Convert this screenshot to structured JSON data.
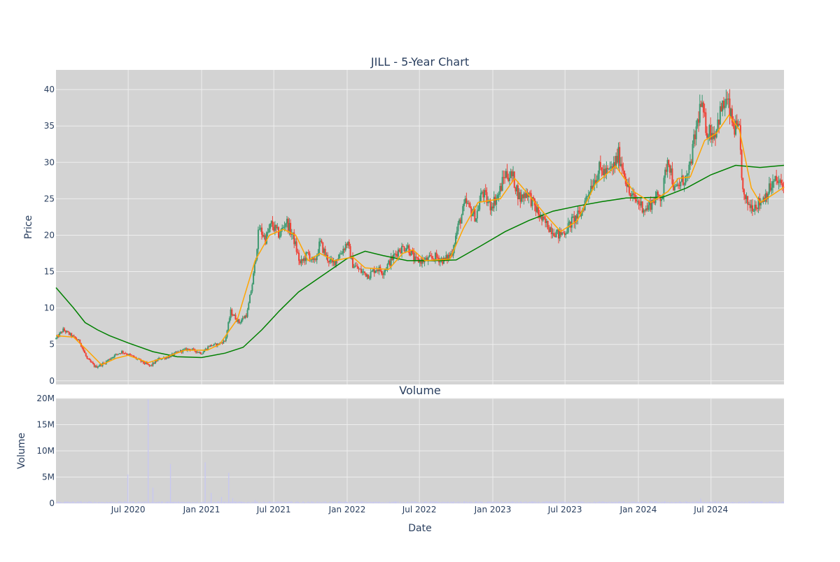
{
  "colors": {
    "background": "#ffffff",
    "plot_bg": "#d3d3d3",
    "grid": "#eeeeee",
    "text": "#2a3f5f",
    "increasing": "#3d9970",
    "decreasing": "#ef4035",
    "ma_short": "#ffa500",
    "ma_long": "#008000",
    "volume": "#c8c8f0"
  },
  "chart_data": [
    {
      "type": "candlestick",
      "title": "JILL - 5-Year Chart",
      "ylabel": "Price",
      "ylim": [
        -0.5,
        42.7
      ],
      "yticks": [
        0,
        5,
        10,
        15,
        20,
        25,
        30,
        35,
        40
      ],
      "xrange": [
        "2020-01-02",
        "2024-12-31"
      ],
      "grid": true,
      "ohlc_control_points": [
        [
          "2020-01-02",
          5.8
        ],
        [
          "2020-01-20",
          7.0
        ],
        [
          "2020-02-10",
          6.2
        ],
        [
          "2020-03-01",
          5.4
        ],
        [
          "2020-03-20",
          3.0
        ],
        [
          "2020-04-10",
          1.9
        ],
        [
          "2020-05-01",
          2.4
        ],
        [
          "2020-05-25",
          3.4
        ],
        [
          "2020-06-15",
          4.0
        ],
        [
          "2020-07-10",
          3.4
        ],
        [
          "2020-08-05",
          2.6
        ],
        [
          "2020-08-25",
          2.0
        ],
        [
          "2020-09-15",
          3.0
        ],
        [
          "2020-10-10",
          3.3
        ],
        [
          "2020-11-05",
          4.0
        ],
        [
          "2020-12-01",
          4.4
        ],
        [
          "2021-01-01",
          3.8
        ],
        [
          "2021-01-20",
          4.8
        ],
        [
          "2021-02-10",
          5.0
        ],
        [
          "2021-03-01",
          5.5
        ],
        [
          "2021-03-15",
          9.5
        ],
        [
          "2021-04-05",
          8.0
        ],
        [
          "2021-04-25",
          9.2
        ],
        [
          "2021-05-10",
          14.0
        ],
        [
          "2021-05-25",
          21.0
        ],
        [
          "2021-06-10",
          19.5
        ],
        [
          "2021-06-25",
          21.5
        ],
        [
          "2021-07-15",
          20.0
        ],
        [
          "2021-08-01",
          22.0
        ],
        [
          "2021-08-20",
          19.5
        ],
        [
          "2021-09-05",
          16.0
        ],
        [
          "2021-09-25",
          17.5
        ],
        [
          "2021-10-10",
          16.0
        ],
        [
          "2021-10-25",
          19.0
        ],
        [
          "2021-11-10",
          17.0
        ],
        [
          "2021-11-25",
          16.0
        ],
        [
          "2021-12-15",
          17.5
        ],
        [
          "2022-01-01",
          19.0
        ],
        [
          "2022-01-15",
          16.0
        ],
        [
          "2022-02-05",
          15.0
        ],
        [
          "2022-02-25",
          14.5
        ],
        [
          "2022-03-15",
          15.5
        ],
        [
          "2022-04-01",
          15.0
        ],
        [
          "2022-04-20",
          16.5
        ],
        [
          "2022-05-10",
          18.0
        ],
        [
          "2022-06-01",
          18.5
        ],
        [
          "2022-06-20",
          16.5
        ],
        [
          "2022-07-15",
          16.5
        ],
        [
          "2022-08-10",
          17.0
        ],
        [
          "2022-09-01",
          16.5
        ],
        [
          "2022-09-20",
          17.5
        ],
        [
          "2022-10-05",
          21.0
        ],
        [
          "2022-10-25",
          24.5
        ],
        [
          "2022-11-05",
          23.5
        ],
        [
          "2022-11-20",
          22.5
        ],
        [
          "2022-12-05",
          26.0
        ],
        [
          "2022-12-25",
          24.0
        ],
        [
          "2023-01-15",
          25.5
        ],
        [
          "2023-02-01",
          28.5
        ],
        [
          "2023-02-20",
          28.0
        ],
        [
          "2023-03-10",
          25.0
        ],
        [
          "2023-03-28",
          26.0
        ],
        [
          "2023-04-15",
          24.0
        ],
        [
          "2023-05-05",
          22.0
        ],
        [
          "2023-05-25",
          21.0
        ],
        [
          "2023-06-15",
          20.0
        ],
        [
          "2023-07-01",
          20.5
        ],
        [
          "2023-07-20",
          22.0
        ],
        [
          "2023-08-10",
          23.0
        ],
        [
          "2023-09-01",
          26.5
        ],
        [
          "2023-09-25",
          29.0
        ],
        [
          "2023-10-15",
          28.5
        ],
        [
          "2023-11-01",
          29.5
        ],
        [
          "2023-11-12",
          31.0
        ],
        [
          "2023-11-25",
          29.0
        ],
        [
          "2023-12-10",
          25.5
        ],
        [
          "2024-01-01",
          24.5
        ],
        [
          "2024-01-20",
          23.5
        ],
        [
          "2024-02-10",
          25.0
        ],
        [
          "2024-03-01",
          25.5
        ],
        [
          "2024-03-15",
          31.0
        ],
        [
          "2024-04-01",
          26.0
        ],
        [
          "2024-04-20",
          27.5
        ],
        [
          "2024-05-05",
          28.0
        ],
        [
          "2024-05-20",
          33.0
        ],
        [
          "2024-06-05",
          38.0
        ],
        [
          "2024-06-20",
          34.5
        ],
        [
          "2024-07-10",
          34.0
        ],
        [
          "2024-07-25",
          37.0
        ],
        [
          "2024-08-10",
          38.5
        ],
        [
          "2024-08-25",
          35.0
        ],
        [
          "2024-09-10",
          34.0
        ],
        [
          "2024-09-20",
          25.0
        ],
        [
          "2024-10-10",
          24.0
        ],
        [
          "2024-11-01",
          24.5
        ],
        [
          "2024-11-20",
          26.0
        ],
        [
          "2024-12-10",
          27.5
        ],
        [
          "2024-12-31",
          26.5
        ]
      ],
      "ma_short_control_points": [
        [
          "2020-01-02",
          6.2
        ],
        [
          "2020-02-15",
          6.0
        ],
        [
          "2020-03-20",
          4.2
        ],
        [
          "2020-04-25",
          2.2
        ],
        [
          "2020-06-01",
          3.1
        ],
        [
          "2020-07-01",
          3.5
        ],
        [
          "2020-08-20",
          2.5
        ],
        [
          "2020-10-01",
          3.2
        ],
        [
          "2020-11-20",
          4.2
        ],
        [
          "2021-01-15",
          4.2
        ],
        [
          "2021-02-15",
          5.0
        ],
        [
          "2021-04-01",
          8.5
        ],
        [
          "2021-05-15",
          16.5
        ],
        [
          "2021-06-20",
          20.0
        ],
        [
          "2021-07-25",
          20.8
        ],
        [
          "2021-08-25",
          20.0
        ],
        [
          "2021-09-25",
          16.5
        ],
        [
          "2021-10-25",
          17.5
        ],
        [
          "2021-12-01",
          16.5
        ],
        [
          "2022-01-15",
          17.0
        ],
        [
          "2022-02-15",
          15.5
        ],
        [
          "2022-04-15",
          15.3
        ],
        [
          "2022-05-20",
          17.5
        ],
        [
          "2022-06-15",
          18.0
        ],
        [
          "2022-07-15",
          16.5
        ],
        [
          "2022-09-15",
          16.7
        ],
        [
          "2022-10-20",
          21.0
        ],
        [
          "2022-11-25",
          24.5
        ],
        [
          "2023-01-20",
          25.0
        ],
        [
          "2023-02-25",
          27.8
        ],
        [
          "2023-03-25",
          26.0
        ],
        [
          "2023-05-10",
          23.0
        ],
        [
          "2023-06-20",
          20.5
        ],
        [
          "2023-08-01",
          22.0
        ],
        [
          "2023-09-15",
          27.0
        ],
        [
          "2023-11-05",
          29.5
        ],
        [
          "2023-12-20",
          26.0
        ],
        [
          "2024-02-01",
          24.5
        ],
        [
          "2024-03-15",
          26.0
        ],
        [
          "2024-04-10",
          27.8
        ],
        [
          "2024-05-10",
          28.0
        ],
        [
          "2024-06-15",
          33.0
        ],
        [
          "2024-07-15",
          34.0
        ],
        [
          "2024-08-15",
          36.5
        ],
        [
          "2024-09-10",
          34.5
        ],
        [
          "2024-10-10",
          26.5
        ],
        [
          "2024-11-01",
          24.5
        ],
        [
          "2024-12-01",
          25.5
        ],
        [
          "2024-12-31",
          26.6
        ]
      ],
      "ma_long_control_points": [
        [
          "2020-01-02",
          12.8
        ],
        [
          "2020-02-15",
          10.0
        ],
        [
          "2020-03-15",
          8.0
        ],
        [
          "2020-04-15",
          7.0
        ],
        [
          "2020-05-15",
          6.2
        ],
        [
          "2020-07-01",
          5.2
        ],
        [
          "2020-09-01",
          4.0
        ],
        [
          "2020-11-01",
          3.3
        ],
        [
          "2021-01-01",
          3.2
        ],
        [
          "2021-03-01",
          3.8
        ],
        [
          "2021-04-15",
          4.6
        ],
        [
          "2021-06-01",
          7.0
        ],
        [
          "2021-07-15",
          9.6
        ],
        [
          "2021-09-01",
          12.2
        ],
        [
          "2021-11-01",
          14.5
        ],
        [
          "2022-01-01",
          16.8
        ],
        [
          "2022-02-15",
          17.8
        ],
        [
          "2022-04-01",
          17.2
        ],
        [
          "2022-06-01",
          16.5
        ],
        [
          "2022-08-01",
          16.5
        ],
        [
          "2022-10-01",
          16.6
        ],
        [
          "2022-12-01",
          18.5
        ],
        [
          "2023-02-01",
          20.5
        ],
        [
          "2023-04-01",
          22.0
        ],
        [
          "2023-06-01",
          23.3
        ],
        [
          "2023-08-01",
          24.0
        ],
        [
          "2023-10-01",
          24.6
        ],
        [
          "2023-12-01",
          25.1
        ],
        [
          "2024-03-01",
          25.2
        ],
        [
          "2024-05-01",
          26.5
        ],
        [
          "2024-07-01",
          28.3
        ],
        [
          "2024-09-01",
          29.6
        ],
        [
          "2024-11-01",
          29.3
        ],
        [
          "2024-12-31",
          29.6
        ]
      ]
    },
    {
      "type": "bar",
      "title": "Volume",
      "xlabel": "Date",
      "ylabel": "Volume",
      "ylim": [
        0,
        20000000
      ],
      "yticks": [
        0,
        5000000,
        10000000,
        15000000,
        20000000
      ],
      "ytick_labels": [
        "0",
        "5M",
        "10M",
        "15M",
        "20M"
      ],
      "xticks": [
        "2020-07-01",
        "2021-01-01",
        "2021-07-01",
        "2022-01-01",
        "2022-07-01",
        "2023-01-01",
        "2023-07-01",
        "2024-01-01",
        "2024-07-01"
      ],
      "xtick_labels": [
        "Jul 2020",
        "Jan 2021",
        "Jul 2021",
        "Jan 2022",
        "Jul 2022",
        "Jan 2023",
        "Jul 2023",
        "Jan 2024",
        "Jul 2024"
      ],
      "volume_spikes": [
        [
          "2020-06-30",
          5500000
        ],
        [
          "2020-08-20",
          19800000
        ],
        [
          "2020-09-01",
          3000000
        ],
        [
          "2020-10-15",
          7500000
        ],
        [
          "2021-01-10",
          7800000
        ],
        [
          "2021-01-25",
          2000000
        ],
        [
          "2021-02-20",
          1200000
        ],
        [
          "2021-03-10",
          5800000
        ],
        [
          "2021-03-20",
          1000000
        ],
        [
          "2021-05-15",
          600000
        ],
        [
          "2024-06-05",
          900000
        ]
      ],
      "volume_baseline": 200000
    }
  ]
}
